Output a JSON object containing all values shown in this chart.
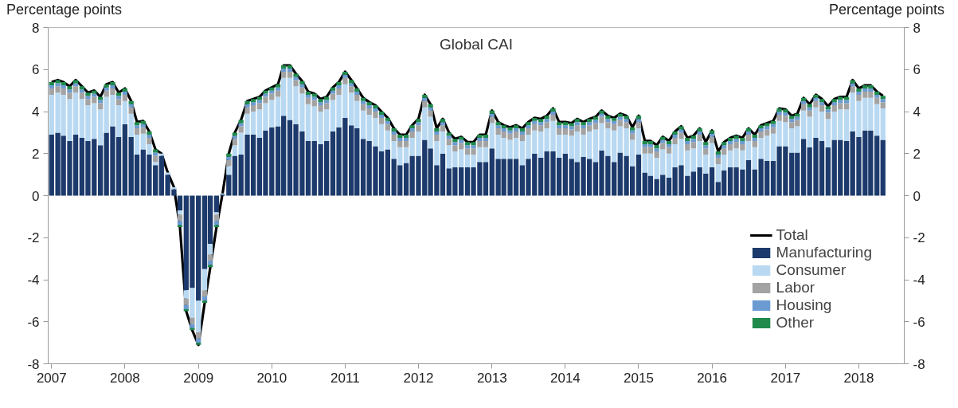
{
  "chart_data": {
    "type": "bar",
    "title": "Global CAI",
    "ylabel": "Percentage points",
    "y2label": "Percentage points",
    "stacked": true,
    "legend": "bottom right",
    "grid": false,
    "x": [
      "2007-01",
      "2007-02",
      "2007-03",
      "2007-04",
      "2007-05",
      "2007-06",
      "2007-07",
      "2007-08",
      "2007-09",
      "2007-10",
      "2007-11",
      "2007-12",
      "2008-01",
      "2008-02",
      "2008-03",
      "2008-04",
      "2008-05",
      "2008-06",
      "2008-07",
      "2008-08",
      "2008-09",
      "2008-10",
      "2008-11",
      "2008-12",
      "2009-01",
      "2009-02",
      "2009-03",
      "2009-04",
      "2009-05",
      "2009-06",
      "2009-07",
      "2009-08",
      "2009-09",
      "2009-10",
      "2009-11",
      "2009-12",
      "2010-01",
      "2010-02",
      "2010-03",
      "2010-04",
      "2010-05",
      "2010-06",
      "2010-07",
      "2010-08",
      "2010-09",
      "2010-10",
      "2010-11",
      "2010-12",
      "2011-01",
      "2011-02",
      "2011-03",
      "2011-04",
      "2011-05",
      "2011-06",
      "2011-07",
      "2011-08",
      "2011-09",
      "2011-10",
      "2011-11",
      "2011-12",
      "2012-01",
      "2012-02",
      "2012-03",
      "2012-04",
      "2012-05",
      "2012-06",
      "2012-07",
      "2012-08",
      "2012-09",
      "2012-10",
      "2012-11",
      "2012-12",
      "2013-01",
      "2013-02",
      "2013-03",
      "2013-04",
      "2013-05",
      "2013-06",
      "2013-07",
      "2013-08",
      "2013-09",
      "2013-10",
      "2013-11",
      "2013-12",
      "2014-01",
      "2014-02",
      "2014-03",
      "2014-04",
      "2014-05",
      "2014-06",
      "2014-07",
      "2014-08",
      "2014-09",
      "2014-10",
      "2014-11",
      "2014-12",
      "2015-01",
      "2015-02",
      "2015-03",
      "2015-04",
      "2015-05",
      "2015-06",
      "2015-07",
      "2015-08",
      "2015-09",
      "2015-10",
      "2015-11",
      "2015-12",
      "2016-01",
      "2016-02",
      "2016-03",
      "2016-04",
      "2016-05",
      "2016-06",
      "2016-07",
      "2016-08",
      "2016-09",
      "2016-10",
      "2016-11",
      "2016-12",
      "2017-01",
      "2017-02",
      "2017-03",
      "2017-04",
      "2017-05",
      "2017-06",
      "2017-07",
      "2017-08",
      "2017-09",
      "2017-10",
      "2017-11",
      "2017-12",
      "2018-01",
      "2018-02",
      "2018-03",
      "2018-04",
      "2018-05"
    ],
    "xlim": [
      "2006-12-15",
      "2018-08-15"
    ],
    "xticks": [
      "2007",
      "2008",
      "2009",
      "2010",
      "2011",
      "2012",
      "2013",
      "2014",
      "2015",
      "2016",
      "2017",
      "2018"
    ],
    "ylim": [
      -8,
      8
    ],
    "yticks": [
      -8,
      -6,
      -4,
      -2,
      0,
      2,
      4,
      6,
      8
    ],
    "y2lim": [
      -8,
      8
    ],
    "y2ticks": [
      -8,
      -6,
      -4,
      -2,
      0,
      2,
      4,
      6,
      8
    ],
    "series": [
      {
        "name": "Total",
        "type": "line",
        "color": "#000000",
        "values": [
          5.4,
          5.5,
          5.4,
          5.2,
          5.5,
          5.2,
          4.9,
          5.0,
          4.7,
          5.3,
          5.4,
          4.9,
          5.1,
          4.5,
          3.5,
          3.55,
          3.05,
          2.2,
          2.0,
          1.1,
          0.4,
          -1.5,
          -5.5,
          -6.4,
          -7.1,
          -5.1,
          -3.4,
          -1.5,
          0.1,
          2.0,
          3.0,
          3.6,
          4.5,
          4.6,
          4.7,
          5.0,
          5.15,
          5.3,
          6.2,
          6.2,
          5.8,
          5.45,
          4.95,
          4.85,
          4.6,
          4.7,
          5.15,
          5.4,
          5.9,
          5.5,
          5.1,
          4.65,
          4.45,
          4.3,
          4.0,
          3.7,
          3.2,
          2.9,
          2.9,
          3.35,
          3.65,
          4.8,
          4.35,
          3.2,
          3.65,
          3.0,
          2.7,
          2.8,
          2.55,
          2.55,
          2.9,
          2.9,
          4.05,
          3.5,
          3.35,
          3.25,
          3.35,
          3.2,
          3.5,
          3.7,
          3.65,
          3.8,
          4.15,
          3.5,
          3.5,
          3.45,
          3.65,
          3.5,
          3.65,
          3.75,
          4.05,
          3.8,
          3.7,
          3.9,
          3.8,
          3.25,
          3.8,
          2.6,
          2.6,
          2.4,
          2.8,
          2.6,
          3.05,
          3.3,
          2.75,
          2.85,
          3.2,
          2.55,
          3.1,
          2.1,
          2.55,
          2.75,
          2.85,
          2.75,
          3.2,
          2.9,
          3.35,
          3.45,
          3.55,
          4.15,
          4.1,
          3.8,
          3.9,
          4.65,
          4.35,
          4.8,
          4.6,
          4.25,
          4.6,
          4.7,
          4.7,
          5.5,
          5.1,
          5.25,
          5.25,
          4.95,
          4.75
        ]
      },
      {
        "name": "Manufacturing",
        "color": "#1c3a6b",
        "values": [
          2.9,
          3.0,
          2.85,
          2.6,
          2.9,
          2.75,
          2.6,
          2.7,
          2.4,
          3.0,
          3.3,
          2.8,
          3.4,
          2.8,
          1.95,
          2.2,
          1.95,
          1.45,
          1.9,
          1.0,
          0.3,
          -0.7,
          -4.5,
          -4.4,
          -5.0,
          -3.5,
          -2.3,
          -0.8,
          0.05,
          1.0,
          1.9,
          1.95,
          2.9,
          2.9,
          2.75,
          3.1,
          3.25,
          3.3,
          3.8,
          3.6,
          3.4,
          3.05,
          2.6,
          2.6,
          2.45,
          2.6,
          3.05,
          3.25,
          3.7,
          3.35,
          3.2,
          2.7,
          2.6,
          2.35,
          2.1,
          2.2,
          1.75,
          1.45,
          1.55,
          1.9,
          1.9,
          2.65,
          2.25,
          1.45,
          2.0,
          1.3,
          1.35,
          1.35,
          1.35,
          1.35,
          1.6,
          1.6,
          2.25,
          1.75,
          1.75,
          1.75,
          1.75,
          1.45,
          1.75,
          2.0,
          1.8,
          2.1,
          2.1,
          1.8,
          2.0,
          1.75,
          1.6,
          1.85,
          1.75,
          1.6,
          2.15,
          1.9,
          1.6,
          2.05,
          1.9,
          1.4,
          1.95,
          1.1,
          0.95,
          0.8,
          1.0,
          0.85,
          1.35,
          1.45,
          0.95,
          1.15,
          1.35,
          1.05,
          1.35,
          0.65,
          1.2,
          1.35,
          1.35,
          1.25,
          1.7,
          1.25,
          1.75,
          1.65,
          1.65,
          2.35,
          2.35,
          2.05,
          2.05,
          2.7,
          2.3,
          2.75,
          2.6,
          2.3,
          2.65,
          2.65,
          2.6,
          3.05,
          2.8,
          3.1,
          3.1,
          2.85,
          2.65
        ]
      },
      {
        "name": "Consumer",
        "color": "#b9d9f2",
        "values": [
          1.9,
          1.9,
          1.95,
          2.0,
          2.0,
          1.85,
          1.7,
          1.7,
          1.7,
          1.7,
          1.5,
          1.5,
          1.1,
          1.1,
          0.95,
          0.75,
          0.5,
          0.15,
          0.1,
          0.1,
          0.1,
          -0.2,
          -0.4,
          -1.4,
          -1.5,
          -1.0,
          -0.5,
          -0.1,
          0.05,
          0.4,
          0.5,
          1.05,
          1.0,
          1.1,
          1.35,
          1.3,
          1.3,
          1.4,
          1.8,
          2.0,
          1.8,
          1.8,
          1.75,
          1.65,
          1.55,
          1.5,
          1.5,
          1.55,
          1.6,
          1.55,
          1.3,
          1.35,
          1.25,
          1.35,
          1.3,
          0.9,
          0.85,
          0.85,
          0.75,
          0.85,
          1.15,
          1.55,
          1.5,
          1.15,
          1.05,
          1.1,
          0.75,
          0.85,
          0.6,
          0.6,
          0.7,
          0.7,
          1.2,
          1.15,
          1.0,
          0.9,
          1.0,
          1.15,
          1.15,
          1.1,
          1.25,
          1.1,
          1.45,
          1.1,
          0.9,
          1.1,
          1.45,
          1.05,
          1.3,
          1.55,
          1.3,
          1.3,
          1.5,
          1.25,
          1.3,
          1.25,
          1.25,
          0.9,
          1.05,
          1.0,
          1.2,
          1.15,
          1.1,
          1.25,
          1.2,
          1.1,
          1.25,
          0.9,
          1.15,
          0.85,
          0.75,
          0.8,
          0.9,
          0.9,
          0.9,
          1.05,
          1.0,
          1.2,
          1.3,
          1.2,
          1.15,
          1.15,
          1.25,
          1.35,
          1.45,
          1.45,
          1.4,
          1.35,
          1.35,
          1.45,
          1.5,
          1.85,
          1.7,
          1.55,
          1.55,
          1.5,
          1.5
        ]
      },
      {
        "name": "Labor",
        "color": "#a3a3a3",
        "values": [
          0.3,
          0.3,
          0.3,
          0.3,
          0.3,
          0.3,
          0.3,
          0.3,
          0.3,
          0.3,
          0.3,
          0.3,
          0.3,
          0.3,
          0.3,
          0.3,
          0.3,
          0.3,
          0,
          0,
          0,
          -0.3,
          -0.3,
          -0.3,
          -0.3,
          -0.3,
          -0.3,
          -0.3,
          0,
          0.3,
          0.3,
          0.3,
          0.3,
          0.3,
          0.3,
          0.3,
          0.3,
          0.3,
          0.3,
          0.3,
          0.3,
          0.3,
          0.3,
          0.3,
          0.3,
          0.3,
          0.3,
          0.3,
          0.3,
          0.3,
          0.3,
          0.3,
          0.3,
          0.3,
          0.3,
          0.3,
          0.3,
          0.3,
          0.3,
          0.3,
          0.3,
          0.3,
          0.3,
          0.3,
          0.3,
          0.3,
          0.3,
          0.3,
          0.3,
          0.3,
          0.3,
          0.3,
          0.3,
          0.3,
          0.3,
          0.3,
          0.3,
          0.3,
          0.3,
          0.3,
          0.3,
          0.3,
          0.3,
          0.3,
          0.3,
          0.3,
          0.3,
          0.3,
          0.3,
          0.3,
          0.3,
          0.3,
          0.3,
          0.3,
          0.3,
          0.3,
          0.3,
          0.3,
          0.3,
          0.3,
          0.3,
          0.3,
          0.3,
          0.3,
          0.3,
          0.3,
          0.3,
          0.3,
          0.3,
          0.3,
          0.3,
          0.3,
          0.3,
          0.3,
          0.3,
          0.3,
          0.3,
          0.3,
          0.3,
          0.3,
          0.3,
          0.3,
          0.3,
          0.3,
          0.3,
          0.3,
          0.3,
          0.3,
          0.3,
          0.3,
          0.3,
          0.3,
          0.3,
          0.3,
          0.3,
          0.3,
          0.3
        ]
      },
      {
        "name": "Housing",
        "color": "#6b9bd1",
        "values": [
          0.15,
          0.15,
          0.15,
          0.15,
          0.15,
          0.15,
          0.15,
          0.15,
          0.15,
          0.15,
          0.15,
          0.15,
          0.15,
          0.15,
          0.15,
          0.15,
          0.15,
          0.15,
          0,
          0,
          0,
          -0.2,
          -0.2,
          -0.2,
          -0.2,
          -0.2,
          -0.2,
          -0.2,
          0,
          0.15,
          0.15,
          0.15,
          0.15,
          0.15,
          0.15,
          0.15,
          0.15,
          0.15,
          0.15,
          0.15,
          0.15,
          0.15,
          0.15,
          0.15,
          0.15,
          0.15,
          0.15,
          0.15,
          0.15,
          0.15,
          0.15,
          0.15,
          0.15,
          0.15,
          0.15,
          0.15,
          0.15,
          0.15,
          0.15,
          0.15,
          0.15,
          0.15,
          0.15,
          0.15,
          0.15,
          0.15,
          0.15,
          0.15,
          0.15,
          0.15,
          0.15,
          0.15,
          0.15,
          0.15,
          0.15,
          0.15,
          0.15,
          0.15,
          0.15,
          0.15,
          0.15,
          0.15,
          0.15,
          0.15,
          0.15,
          0.15,
          0.15,
          0.15,
          0.15,
          0.15,
          0.15,
          0.15,
          0.15,
          0.15,
          0.15,
          0.15,
          0.15,
          0.15,
          0.15,
          0.15,
          0.15,
          0.15,
          0.15,
          0.15,
          0.15,
          0.15,
          0.15,
          0.15,
          0.15,
          0.15,
          0.15,
          0.15,
          0.15,
          0.15,
          0.15,
          0.15,
          0.15,
          0.15,
          0.15,
          0.15,
          0.15,
          0.15,
          0.15,
          0.15,
          0.15,
          0.15,
          0.15,
          0.15,
          0.15,
          0.15,
          0.15,
          0.15,
          0.15,
          0.15,
          0.15,
          0.15,
          0.15
        ]
      },
      {
        "name": "Other",
        "color": "#1f8a4c",
        "values": [
          0.15,
          0.15,
          0.15,
          0.15,
          0.15,
          0.15,
          0.15,
          0.15,
          0.15,
          0.15,
          0.15,
          0.15,
          0.15,
          0.15,
          0.15,
          0.15,
          0.15,
          0.15,
          0,
          0,
          0,
          -0.1,
          -0.1,
          -0.1,
          -0.1,
          -0.1,
          -0.1,
          -0.1,
          0,
          0.15,
          0.15,
          0.15,
          0.15,
          0.15,
          0.15,
          0.15,
          0.15,
          0.15,
          0.15,
          0.15,
          0.15,
          0.15,
          0.15,
          0.15,
          0.15,
          0.15,
          0.15,
          0.15,
          0.15,
          0.15,
          0.15,
          0.15,
          0.15,
          0.15,
          0.15,
          0.15,
          0.15,
          0.15,
          0.15,
          0.15,
          0.15,
          0.15,
          0.15,
          0.15,
          0.15,
          0.15,
          0.15,
          0.15,
          0.15,
          0.15,
          0.15,
          0.15,
          0.15,
          0.15,
          0.15,
          0.15,
          0.15,
          0.15,
          0.15,
          0.15,
          0.15,
          0.15,
          0.15,
          0.15,
          0.15,
          0.15,
          0.15,
          0.15,
          0.15,
          0.15,
          0.15,
          0.15,
          0.15,
          0.15,
          0.15,
          0.15,
          0.15,
          0.15,
          0.15,
          0.15,
          0.15,
          0.15,
          0.15,
          0.15,
          0.15,
          0.15,
          0.15,
          0.15,
          0.15,
          0.15,
          0.15,
          0.15,
          0.15,
          0.15,
          0.15,
          0.15,
          0.15,
          0.15,
          0.15,
          0.15,
          0.15,
          0.15,
          0.15,
          0.15,
          0.15,
          0.15,
          0.15,
          0.15,
          0.15,
          0.15,
          0.15,
          0.15,
          0.15,
          0.15,
          0.15,
          0.15,
          0.15
        ]
      }
    ]
  }
}
